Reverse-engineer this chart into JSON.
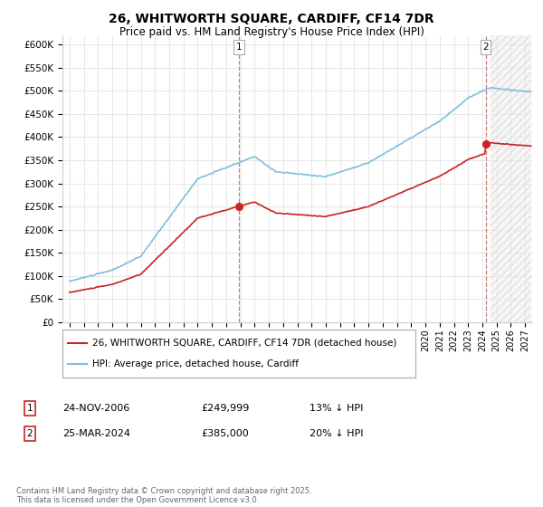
{
  "title": "26, WHITWORTH SQUARE, CARDIFF, CF14 7DR",
  "subtitle": "Price paid vs. HM Land Registry's House Price Index (HPI)",
  "title_fontsize": 10,
  "subtitle_fontsize": 8.5,
  "hpi_color": "#7dbfde",
  "price_color": "#cc2222",
  "dashed_color": "#cc6666",
  "background_color": "#ffffff",
  "grid_color": "#dddddd",
  "ylim": [
    0,
    620000
  ],
  "yticks": [
    0,
    50000,
    100000,
    150000,
    200000,
    250000,
    300000,
    350000,
    400000,
    450000,
    500000,
    550000,
    600000
  ],
  "xlim_start": 1994.5,
  "xlim_end": 2027.5,
  "transaction1_date": 2006.9,
  "transaction1_price": 249999,
  "transaction1_label": "1",
  "transaction2_date": 2024.23,
  "transaction2_price": 385000,
  "transaction2_label": "2",
  "legend_line1": "26, WHITWORTH SQUARE, CARDIFF, CF14 7DR (detached house)",
  "legend_line2": "HPI: Average price, detached house, Cardiff",
  "footnote": "Contains HM Land Registry data © Crown copyright and database right 2025.\nThis data is licensed under the Open Government Licence v3.0.",
  "table_row1_date": "24-NOV-2006",
  "table_row1_price": "£249,999",
  "table_row1_pct": "13% ↓ HPI",
  "table_row2_date": "25-MAR-2024",
  "table_row2_price": "£385,000",
  "table_row2_pct": "20% ↓ HPI"
}
